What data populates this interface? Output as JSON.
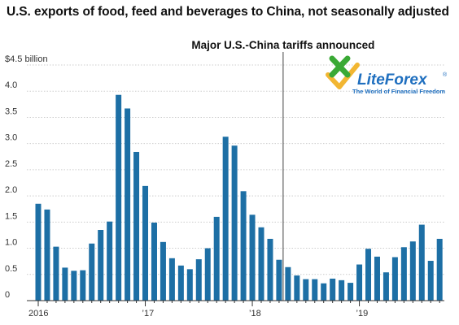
{
  "chart_data": {
    "type": "bar",
    "title": "U.S. exports of food, feed and beverages to China, not seasonally adjusted",
    "ylim": [
      0,
      4.5
    ],
    "y_ticks": [
      {
        "value": 0,
        "label": "0"
      },
      {
        "value": 0.5,
        "label": "0.5"
      },
      {
        "value": 1.0,
        "label": "1.0"
      },
      {
        "value": 1.5,
        "label": "1.5"
      },
      {
        "value": 2.0,
        "label": "2.0"
      },
      {
        "value": 2.5,
        "label": "2.5"
      },
      {
        "value": 3.0,
        "label": "3.0"
      },
      {
        "value": 3.5,
        "label": "3.5"
      },
      {
        "value": 4.0,
        "label": "4.0"
      },
      {
        "value": 4.5,
        "label": "$4.5 billion"
      }
    ],
    "x_ticks": [
      {
        "index": 0,
        "label": "2016"
      },
      {
        "index": 12,
        "label": "’17"
      },
      {
        "index": 24,
        "label": "’18"
      },
      {
        "index": 36,
        "label": "’19"
      }
    ],
    "grid": true,
    "color": "#1d6fa5",
    "values": [
      1.85,
      1.74,
      1.03,
      0.63,
      0.57,
      0.58,
      1.09,
      1.35,
      1.51,
      3.93,
      3.67,
      2.84,
      2.19,
      1.49,
      1.12,
      0.81,
      0.67,
      0.6,
      0.79,
      1.0,
      1.6,
      3.13,
      2.96,
      2.09,
      1.64,
      1.4,
      1.18,
      0.78,
      0.64,
      0.48,
      0.41,
      0.41,
      0.33,
      0.42,
      0.39,
      0.34,
      0.69,
      0.99,
      0.84,
      0.54,
      0.83,
      1.02,
      1.13,
      1.45,
      0.76,
      1.18
    ],
    "annotation": {
      "text": "Major U.S.-China tariffs announced",
      "at_index": 28
    }
  },
  "logo": {
    "text": "LiteForex",
    "tagline": "The World of Financial Freedom",
    "mark": "®",
    "colors": {
      "green": "#3aa935",
      "yellow": "#f2b632",
      "blue": "#1f6fbf"
    }
  }
}
